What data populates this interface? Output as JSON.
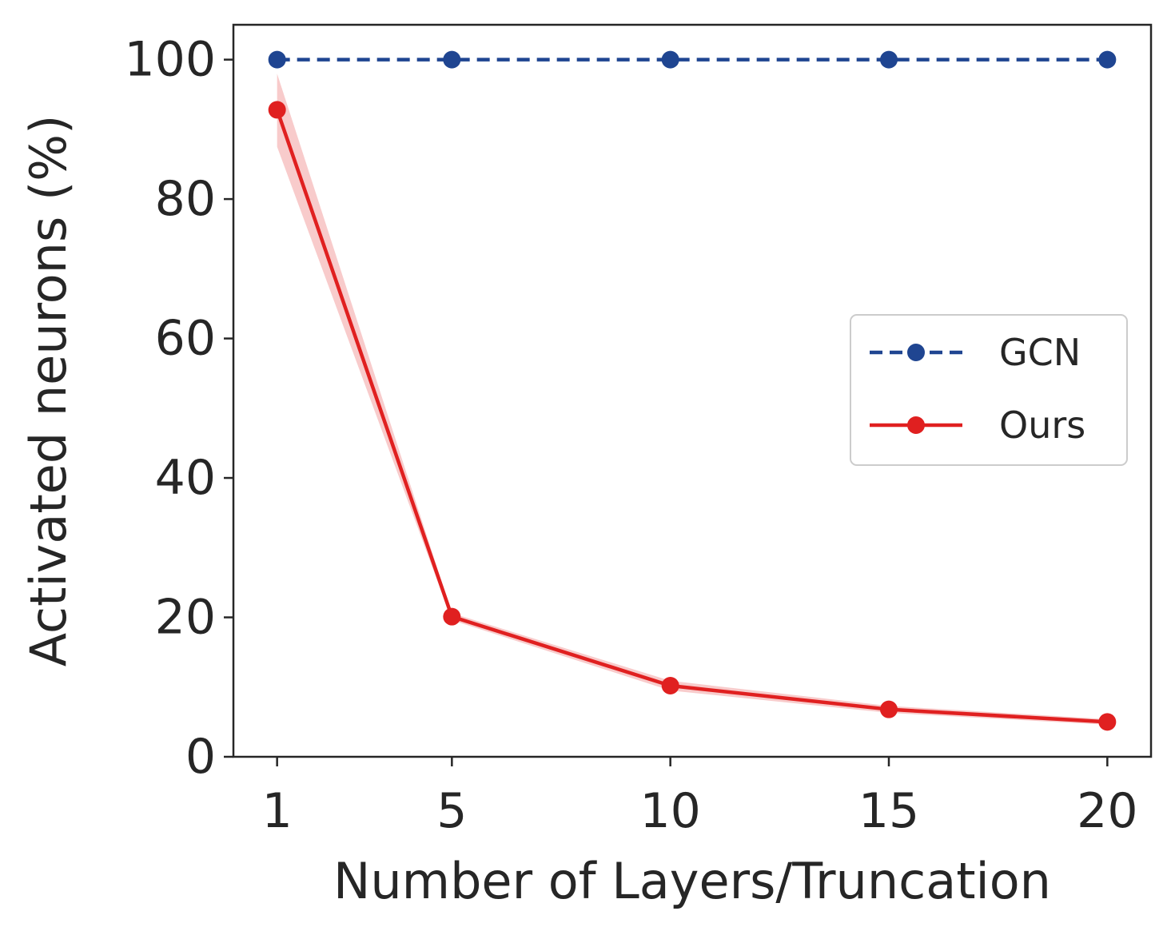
{
  "chart_data": {
    "type": "line",
    "title": "",
    "xlabel": "Number of Layers/Truncation",
    "ylabel": "Activated neurons (%)",
    "x": [
      1,
      5,
      10,
      15,
      20
    ],
    "xlim": [
      0,
      21
    ],
    "ylim": [
      0,
      105
    ],
    "xticks": [
      1,
      5,
      10,
      15,
      20
    ],
    "yticks": [
      0,
      20,
      40,
      60,
      80,
      100
    ],
    "grid": false,
    "legend_position": "center-right",
    "series": [
      {
        "name": "GCN",
        "values": [
          100,
          100,
          100,
          100,
          100
        ],
        "color": "#1f4591",
        "linestyle": "dashed",
        "marker": "circle"
      },
      {
        "name": "Ours",
        "values": [
          92.8,
          20.1,
          10.2,
          6.8,
          5.0
        ],
        "band_lower": [
          87.5,
          19.6,
          9.5,
          6.3,
          4.6
        ],
        "band_upper": [
          98.0,
          20.6,
          10.9,
          7.3,
          5.4
        ],
        "color": "#e02020",
        "band_color": "#f4a8a8",
        "linestyle": "solid",
        "marker": "circle"
      }
    ]
  }
}
